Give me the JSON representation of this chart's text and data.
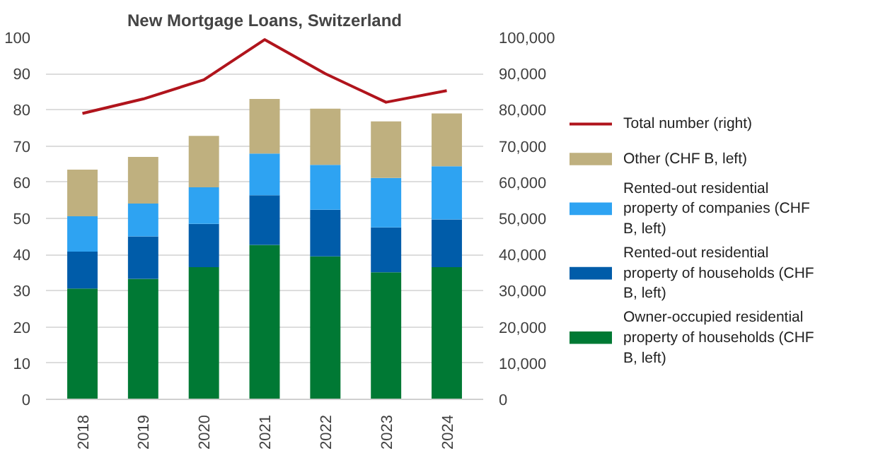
{
  "chart_data": {
    "type": "bar",
    "title": "New Mortgage Loans, Switzerland",
    "stacked": true,
    "categories": [
      "2018",
      "2019",
      "2020",
      "2021",
      "2022",
      "2023",
      "2024"
    ],
    "series": [
      {
        "name": "Owner-occupied residential property of households (CHF B, left)",
        "color": "#007934",
        "values": [
          30.6,
          33.3,
          36.5,
          42.7,
          39.5,
          35.1,
          36.5
        ]
      },
      {
        "name": "Rented-out residential property of households (CHF B, left)",
        "color": "#005ca9",
        "values": [
          10.2,
          11.7,
          12.0,
          13.7,
          12.9,
          12.4,
          13.2
        ]
      },
      {
        "name": "Rented-out residential property of companies (CHF B, left)",
        "color": "#2ea3f2",
        "values": [
          9.8,
          9.1,
          10.1,
          11.5,
          12.4,
          13.7,
          14.7
        ]
      },
      {
        "name": "Other (CHF B, left)",
        "color": "#bfb07f",
        "values": [
          12.9,
          12.9,
          14.2,
          15.1,
          15.5,
          15.6,
          14.6
        ]
      },
      {
        "name": "Total number (right)",
        "type": "line",
        "axis": "y2",
        "color": "#b0141c",
        "values": [
          79000,
          83000,
          88300,
          99400,
          90000,
          82100,
          85300
        ]
      }
    ],
    "ylim": [
      0,
      100
    ],
    "yticks": [
      0,
      10,
      20,
      30,
      40,
      50,
      60,
      70,
      80,
      90,
      100
    ],
    "y2lim": [
      0,
      100000
    ],
    "y2ticks": [
      {
        "value": 0,
        "label": "0"
      },
      {
        "value": 10000,
        "label": "10,000"
      },
      {
        "value": 20000,
        "label": "20,000"
      },
      {
        "value": 30000,
        "label": "30,000"
      },
      {
        "value": 40000,
        "label": "40,000"
      },
      {
        "value": 50000,
        "label": "50,000"
      },
      {
        "value": 60000,
        "label": "60,000"
      },
      {
        "value": 70000,
        "label": "70,000"
      },
      {
        "value": 80000,
        "label": "80,000"
      },
      {
        "value": 90000,
        "label": "90,000"
      },
      {
        "value": 100000,
        "label": "100,000"
      }
    ],
    "grid": "y",
    "legend": "right"
  }
}
